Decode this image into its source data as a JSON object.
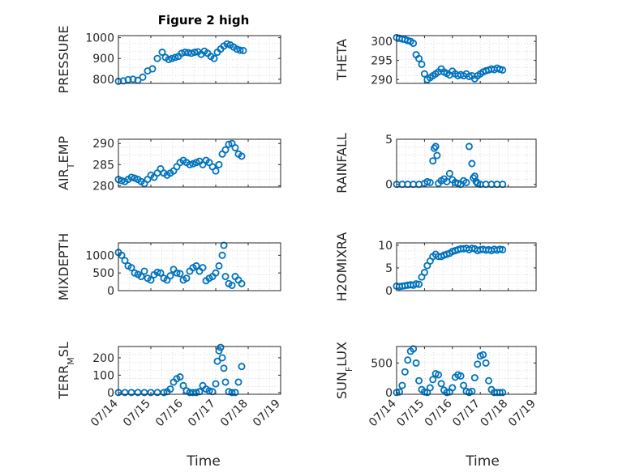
{
  "title": "Figure 2 high",
  "xlabel": "Time",
  "colors": {
    "marker": "#0072bd",
    "axis": "#262626",
    "grid": "#d0d0d0"
  },
  "chart_data": [
    {
      "type": "scatter",
      "ylabel": "PRESSURE",
      "ylim": [
        780,
        1010
      ],
      "yticks": [
        800,
        900,
        1000
      ],
      "xticks": [],
      "x": [
        0.0,
        0.15,
        0.3,
        0.45,
        0.6,
        0.75,
        0.9,
        1.05,
        1.2,
        1.35,
        1.45,
        1.55,
        1.65,
        1.75,
        1.85,
        1.95,
        2.05,
        2.15,
        2.25,
        2.35,
        2.45,
        2.55,
        2.65,
        2.75,
        2.85,
        2.95,
        3.05,
        3.15,
        3.25,
        3.35,
        3.45,
        3.55,
        3.65,
        3.75,
        3.85
      ],
      "y": [
        790,
        792,
        798,
        800,
        795,
        810,
        840,
        850,
        900,
        930,
        905,
        895,
        900,
        905,
        910,
        925,
        930,
        928,
        925,
        930,
        932,
        920,
        935,
        925,
        910,
        900,
        930,
        945,
        960,
        970,
        965,
        955,
        945,
        940,
        938
      ]
    },
    {
      "type": "scatter",
      "ylabel": "THETA",
      "ylim": [
        289,
        301.5
      ],
      "yticks": [
        290,
        295,
        300
      ],
      "xticks": [],
      "x": [
        0.0,
        0.1,
        0.2,
        0.3,
        0.4,
        0.5,
        0.6,
        0.7,
        0.8,
        0.9,
        1.0,
        1.1,
        1.2,
        1.3,
        1.4,
        1.5,
        1.6,
        1.7,
        1.8,
        1.9,
        2.0,
        2.1,
        2.2,
        2.3,
        2.4,
        2.5,
        2.6,
        2.7,
        2.8,
        2.9,
        3.0,
        3.1,
        3.2,
        3.3,
        3.4,
        3.5,
        3.6,
        3.7,
        3.8
      ],
      "y": [
        301,
        300.8,
        300.6,
        300.5,
        300.2,
        300,
        299.5,
        296.5,
        295.5,
        294,
        291.5,
        290,
        290.5,
        291,
        291.5,
        292,
        292.8,
        292,
        291.6,
        291.2,
        292.2,
        291.5,
        291,
        291.3,
        291,
        291.5,
        290.8,
        291,
        290.2,
        291,
        291.5,
        292,
        292.3,
        292.5,
        292.8,
        292.6,
        293,
        292.7,
        292.5
      ]
    },
    {
      "type": "scatter",
      "ylabel": "AIR_TEMP",
      "ylim": [
        279.7,
        291
      ],
      "yticks": [
        280,
        285,
        290
      ],
      "xticks": [],
      "x": [
        0.0,
        0.1,
        0.2,
        0.3,
        0.4,
        0.5,
        0.6,
        0.7,
        0.8,
        0.9,
        1.0,
        1.1,
        1.2,
        1.3,
        1.4,
        1.5,
        1.6,
        1.7,
        1.8,
        1.9,
        2.0,
        2.1,
        2.2,
        2.3,
        2.4,
        2.5,
        2.6,
        2.7,
        2.8,
        2.9,
        3.0,
        3.1,
        3.2,
        3.3,
        3.4,
        3.5,
        3.6,
        3.7,
        3.8
      ],
      "y": [
        281.5,
        281.2,
        281,
        281.5,
        282,
        281.8,
        281.5,
        281,
        280.5,
        281.5,
        282.5,
        282,
        283,
        284,
        283,
        282.5,
        283,
        283.5,
        284.5,
        285.5,
        286,
        285.5,
        285,
        285.2,
        285.5,
        285.8,
        285,
        286,
        285.5,
        284.5,
        283.5,
        285,
        287.5,
        288.5,
        289.8,
        290,
        289,
        287.5,
        287
      ]
    },
    {
      "type": "scatter",
      "ylabel": "RAINFALL",
      "ylim": [
        -0.3,
        5
      ],
      "yticks": [
        0,
        5
      ],
      "xticks": [],
      "x": [
        0.0,
        0.2,
        0.4,
        0.6,
        0.8,
        1.0,
        1.1,
        1.2,
        1.3,
        1.35,
        1.4,
        1.45,
        1.5,
        1.6,
        1.7,
        1.8,
        1.9,
        2.0,
        2.1,
        2.2,
        2.3,
        2.4,
        2.5,
        2.6,
        2.7,
        2.75,
        2.8,
        2.85,
        2.9,
        3.0,
        3.2,
        3.4,
        3.6,
        3.8
      ],
      "y": [
        0,
        0,
        0,
        0,
        0,
        0.1,
        0.3,
        0.2,
        2.6,
        4.0,
        4.2,
        3.2,
        0.1,
        0.4,
        0.6,
        0.3,
        1.2,
        0.5,
        0.2,
        0.1,
        0,
        0.4,
        0.2,
        4.2,
        2.3,
        0.7,
        0.9,
        0.3,
        0.1,
        0,
        0,
        0,
        0,
        0
      ]
    },
    {
      "type": "scatter",
      "ylabel": "MIXDEPTH",
      "ylim": [
        0,
        1350
      ],
      "yticks": [
        0,
        500,
        1000
      ],
      "xticks": [],
      "x": [
        0.0,
        0.1,
        0.2,
        0.3,
        0.4,
        0.5,
        0.6,
        0.7,
        0.8,
        0.9,
        1.0,
        1.1,
        1.2,
        1.3,
        1.4,
        1.5,
        1.6,
        1.7,
        1.8,
        1.9,
        2.0,
        2.1,
        2.2,
        2.3,
        2.4,
        2.5,
        2.6,
        2.7,
        2.8,
        2.9,
        3.0,
        3.1,
        3.2,
        3.25,
        3.3,
        3.4,
        3.5,
        3.6,
        3.7,
        3.8
      ],
      "y": [
        1080,
        1000,
        850,
        700,
        650,
        500,
        460,
        400,
        550,
        350,
        300,
        450,
        520,
        500,
        350,
        300,
        420,
        600,
        500,
        480,
        300,
        350,
        550,
        650,
        700,
        550,
        650,
        280,
        350,
        400,
        500,
        700,
        1000,
        1280,
        400,
        200,
        150,
        400,
        300,
        200
      ]
    },
    {
      "type": "scatter",
      "ylabel": "H2OMIXRA",
      "ylim": [
        0,
        10.5
      ],
      "yticks": [
        0,
        5,
        10
      ],
      "xticks": [],
      "x": [
        0.0,
        0.1,
        0.2,
        0.3,
        0.4,
        0.5,
        0.6,
        0.7,
        0.8,
        0.9,
        1.0,
        1.1,
        1.2,
        1.3,
        1.4,
        1.5,
        1.6,
        1.7,
        1.8,
        1.9,
        2.0,
        2.1,
        2.2,
        2.3,
        2.4,
        2.5,
        2.6,
        2.7,
        2.8,
        2.9,
        3.0,
        3.1,
        3.2,
        3.3,
        3.4,
        3.5,
        3.6,
        3.7,
        3.8
      ],
      "y": [
        1,
        0.9,
        1,
        1.1,
        1.2,
        1.3,
        1.2,
        1.5,
        1.4,
        3,
        4,
        5.5,
        6.5,
        7.5,
        8,
        7.5,
        7.5,
        7.8,
        8,
        8.2,
        8.6,
        8.8,
        9,
        9.2,
        9.2,
        9.3,
        9,
        9.3,
        9.2,
        8.8,
        9,
        9.1,
        8.9,
        9,
        8.8,
        9.1,
        8.9,
        9.1,
        9
      ]
    },
    {
      "type": "scatter",
      "ylabel": "TERR_MSL",
      "ylim": [
        -10,
        265
      ],
      "yticks": [
        0,
        100,
        200
      ],
      "xticks": [
        "07/14",
        "07/15",
        "07/16",
        "07/17",
        "07/18",
        "07/19"
      ],
      "x": [
        0.0,
        0.2,
        0.4,
        0.6,
        0.8,
        1.0,
        1.2,
        1.4,
        1.5,
        1.6,
        1.7,
        1.8,
        1.9,
        2.0,
        2.1,
        2.2,
        2.3,
        2.4,
        2.5,
        2.6,
        2.7,
        2.8,
        2.9,
        3.0,
        3.05,
        3.1,
        3.15,
        3.2,
        3.25,
        3.3,
        3.4,
        3.5,
        3.6,
        3.7,
        3.8
      ],
      "y": [
        0,
        0,
        0,
        0,
        0,
        0,
        0,
        0,
        5,
        20,
        60,
        80,
        90,
        40,
        10,
        0,
        0,
        0,
        5,
        40,
        20,
        10,
        5,
        50,
        180,
        240,
        260,
        200,
        140,
        60,
        5,
        0,
        0,
        60,
        150
      ]
    },
    {
      "type": "scatter",
      "ylabel": "SUN_FLUX",
      "ylim": [
        -30,
        780
      ],
      "yticks": [
        0,
        500
      ],
      "xticks": [
        "07/14",
        "07/15",
        "07/16",
        "07/17",
        "07/18",
        "07/19"
      ],
      "x": [
        0.0,
        0.1,
        0.2,
        0.3,
        0.4,
        0.5,
        0.6,
        0.7,
        0.8,
        0.9,
        1.0,
        1.1,
        1.2,
        1.3,
        1.4,
        1.5,
        1.6,
        1.7,
        1.8,
        1.9,
        2.0,
        2.1,
        2.2,
        2.3,
        2.4,
        2.5,
        2.6,
        2.7,
        2.8,
        2.9,
        3.0,
        3.1,
        3.2,
        3.3,
        3.4,
        3.5,
        3.6,
        3.7,
        3.8
      ],
      "y": [
        0,
        10,
        120,
        350,
        550,
        700,
        740,
        500,
        200,
        50,
        10,
        0,
        80,
        220,
        320,
        300,
        150,
        40,
        0,
        10,
        80,
        260,
        300,
        280,
        120,
        20,
        0,
        20,
        250,
        480,
        620,
        640,
        500,
        200,
        50,
        0,
        0,
        0,
        0
      ]
    }
  ]
}
